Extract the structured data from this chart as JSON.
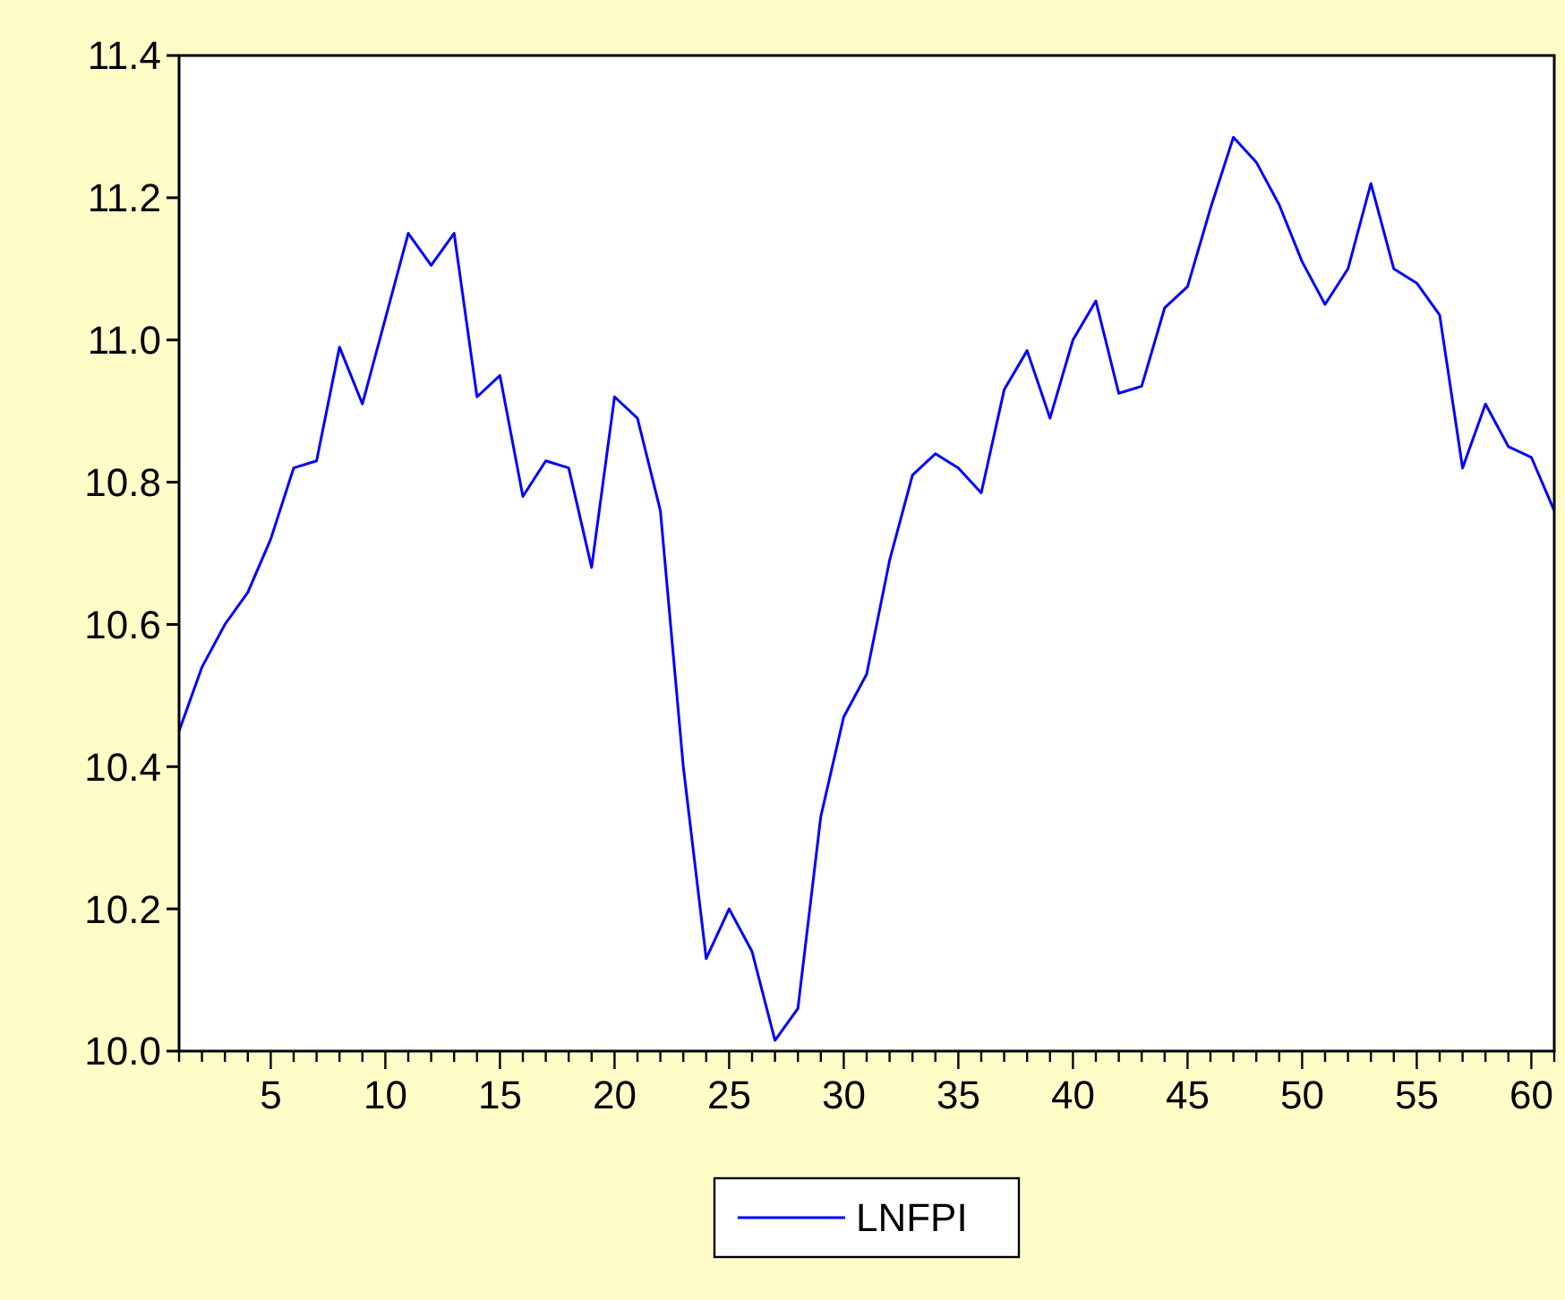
{
  "chart_data": {
    "type": "line",
    "xlim": [
      1,
      61
    ],
    "ylim": [
      10.0,
      11.4
    ],
    "xticks": [
      {
        "value": 1,
        "label": null
      },
      {
        "value": 2,
        "label": null
      },
      {
        "value": 3,
        "label": null
      },
      {
        "value": 4,
        "label": null
      },
      5,
      {
        "value": 6,
        "label": null
      },
      {
        "value": 7,
        "label": null
      },
      {
        "value": 8,
        "label": null
      },
      {
        "value": 9,
        "label": null
      },
      10,
      {
        "value": 11,
        "label": null
      },
      {
        "value": 12,
        "label": null
      },
      {
        "value": 13,
        "label": null
      },
      {
        "value": 14,
        "label": null
      },
      15,
      {
        "value": 16,
        "label": null
      },
      {
        "value": 17,
        "label": null
      },
      {
        "value": 18,
        "label": null
      },
      {
        "value": 19,
        "label": null
      },
      20,
      {
        "value": 21,
        "label": null
      },
      {
        "value": 22,
        "label": null
      },
      {
        "value": 23,
        "label": null
      },
      {
        "value": 24,
        "label": null
      },
      25,
      {
        "value": 26,
        "label": null
      },
      {
        "value": 27,
        "label": null
      },
      {
        "value": 28,
        "label": null
      },
      {
        "value": 29,
        "label": null
      },
      30,
      {
        "value": 31,
        "label": null
      },
      {
        "value": 32,
        "label": null
      },
      {
        "value": 33,
        "label": null
      },
      {
        "value": 34,
        "label": null
      },
      35,
      {
        "value": 36,
        "label": null
      },
      {
        "value": 37,
        "label": null
      },
      {
        "value": 38,
        "label": null
      },
      {
        "value": 39,
        "label": null
      },
      40,
      {
        "value": 41,
        "label": null
      },
      {
        "value": 42,
        "label": null
      },
      {
        "value": 43,
        "label": null
      },
      {
        "value": 44,
        "label": null
      },
      45,
      {
        "value": 46,
        "label": null
      },
      {
        "value": 47,
        "label": null
      },
      {
        "value": 48,
        "label": null
      },
      {
        "value": 49,
        "label": null
      },
      50,
      {
        "value": 51,
        "label": null
      },
      {
        "value": 52,
        "label": null
      },
      {
        "value": 53,
        "label": null
      },
      {
        "value": 54,
        "label": null
      },
      55,
      {
        "value": 56,
        "label": null
      },
      {
        "value": 57,
        "label": null
      },
      {
        "value": 58,
        "label": null
      },
      {
        "value": 59,
        "label": null
      },
      60,
      {
        "value": 61,
        "label": null
      }
    ],
    "yticks": [
      {
        "value": 10.0,
        "label": "10.0"
      },
      10.2,
      10.4,
      10.6,
      10.8,
      {
        "value": 11.0,
        "label": "11.0"
      },
      11.2,
      11.4
    ],
    "x": [
      1,
      2,
      3,
      4,
      5,
      6,
      7,
      8,
      9,
      10,
      11,
      12,
      13,
      14,
      15,
      16,
      17,
      18,
      19,
      20,
      21,
      22,
      23,
      24,
      25,
      26,
      27,
      28,
      29,
      30,
      31,
      32,
      33,
      34,
      35,
      36,
      37,
      38,
      39,
      40,
      41,
      42,
      43,
      44,
      45,
      46,
      47,
      48,
      49,
      50,
      51,
      52,
      53,
      54,
      55,
      56,
      57,
      58,
      59,
      60,
      61
    ],
    "series": [
      {
        "name": "LNFPI",
        "color": "#0000ff",
        "values": [
          10.45,
          10.54,
          10.6,
          10.645,
          10.72,
          10.82,
          10.83,
          10.99,
          10.91,
          11.03,
          11.15,
          11.105,
          11.15,
          10.92,
          10.95,
          10.78,
          10.83,
          10.82,
          10.68,
          10.92,
          10.89,
          10.76,
          10.4,
          10.13,
          10.2,
          10.14,
          10.015,
          10.06,
          10.33,
          10.47,
          10.53,
          10.69,
          10.81,
          10.84,
          10.82,
          10.785,
          10.93,
          10.985,
          10.89,
          11.0,
          11.055,
          10.925,
          10.935,
          11.045,
          11.075,
          11.185,
          11.285,
          11.25,
          11.19,
          11.11,
          11.05,
          11.1,
          11.22,
          11.1,
          11.08,
          11.035,
          10.82,
          10.91,
          10.85,
          10.835,
          10.76
        ]
      }
    ],
    "grid": false,
    "legend": "bottom",
    "line_style": "solid",
    "marker": "none"
  }
}
